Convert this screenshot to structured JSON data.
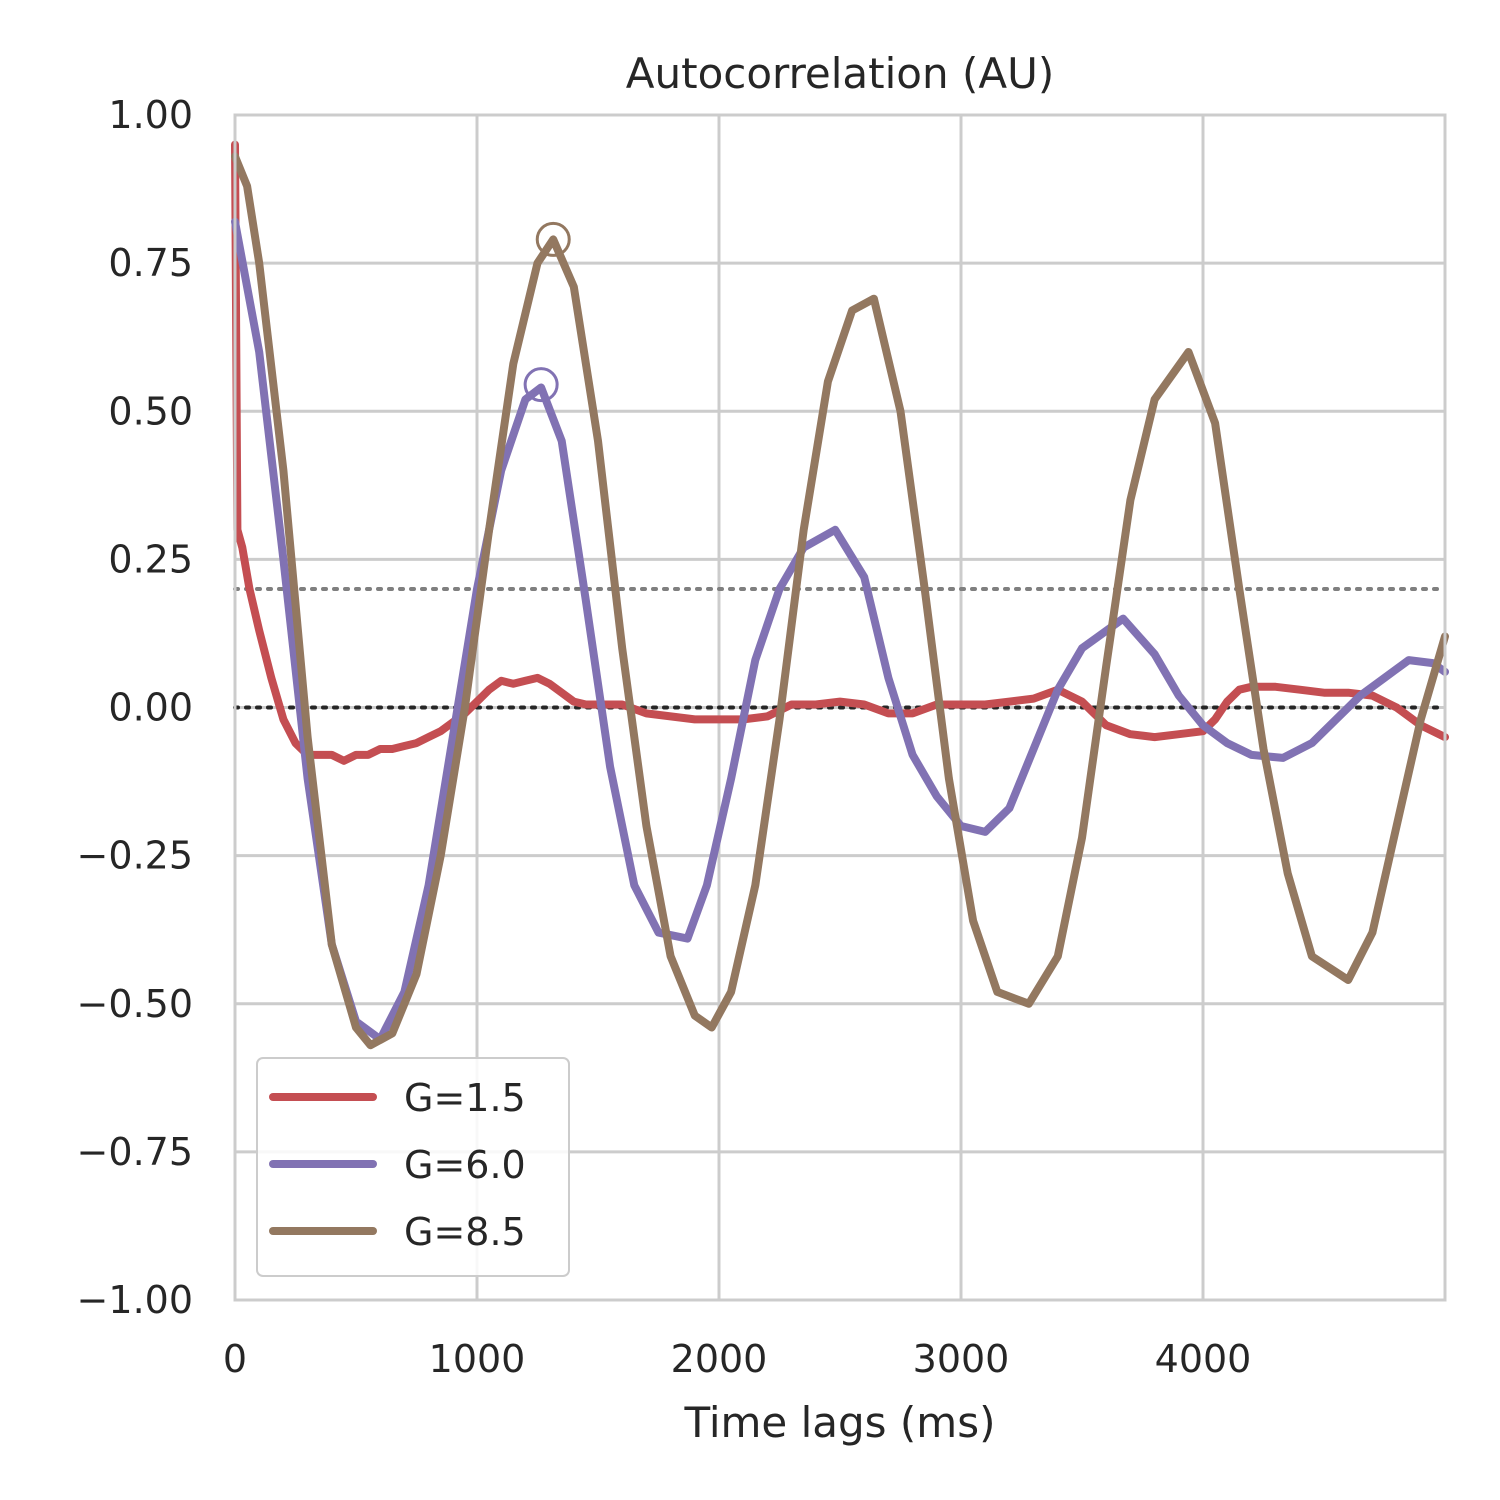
{
  "chart_data": {
    "type": "line",
    "title": "Autocorrelation (AU)",
    "xlabel": "Time lags (ms)",
    "ylabel": "",
    "xlim": [
      0,
      5000
    ],
    "ylim": [
      -1.0,
      1.0
    ],
    "x_ticks": [
      0,
      1000,
      2000,
      3000,
      4000
    ],
    "x_tick_labels": [
      "0",
      "1000",
      "2000",
      "3000",
      "4000"
    ],
    "y_ticks": [
      1.0,
      0.75,
      0.5,
      0.25,
      0.0,
      -0.25,
      -0.5,
      -0.75,
      -1.0
    ],
    "y_tick_labels": [
      "1.00",
      "0.75",
      "0.50",
      "0.25",
      "0.00",
      "−0.25",
      "−0.50",
      "−0.75",
      "−1.00"
    ],
    "grid": true,
    "legend_position": "bottom-left",
    "reference_lines": [
      {
        "y": 0.2,
        "style": "dotted",
        "color": "#7f7f7f"
      },
      {
        "y": 0.0,
        "style": "dotted",
        "color": "#262626"
      }
    ],
    "series": [
      {
        "name": "G=1.5",
        "color": "#c44e52",
        "x": [
          0,
          10,
          30,
          60,
          100,
          150,
          200,
          250,
          300,
          350,
          400,
          450,
          500,
          550,
          600,
          650,
          700,
          750,
          800,
          850,
          900,
          950,
          1000,
          1050,
          1100,
          1150,
          1200,
          1250,
          1300,
          1350,
          1400,
          1450,
          1500,
          1550,
          1600,
          1700,
          1800,
          1900,
          2000,
          2100,
          2200,
          2300,
          2400,
          2500,
          2600,
          2700,
          2800,
          2900,
          3000,
          3100,
          3200,
          3300,
          3400,
          3500,
          3600,
          3700,
          3800,
          3900,
          4000,
          4050,
          4100,
          4150,
          4200,
          4300,
          4400,
          4500,
          4600,
          4700,
          4800,
          4900,
          5000
        ],
        "y": [
          0.95,
          0.3,
          0.27,
          0.2,
          0.13,
          0.05,
          -0.02,
          -0.06,
          -0.08,
          -0.08,
          -0.08,
          -0.09,
          -0.08,
          -0.08,
          -0.07,
          -0.07,
          -0.065,
          -0.06,
          -0.05,
          -0.04,
          -0.025,
          -0.01,
          0.01,
          0.03,
          0.045,
          0.04,
          0.045,
          0.05,
          0.04,
          0.025,
          0.01,
          0.005,
          0.005,
          0.005,
          0.005,
          -0.01,
          -0.015,
          -0.02,
          -0.02,
          -0.02,
          -0.015,
          0.005,
          0.005,
          0.01,
          0.005,
          -0.01,
          -0.01,
          0.005,
          0.005,
          0.005,
          0.01,
          0.015,
          0.03,
          0.01,
          -0.03,
          -0.045,
          -0.05,
          -0.045,
          -0.04,
          -0.02,
          0.01,
          0.03,
          0.035,
          0.035,
          0.03,
          0.025,
          0.025,
          0.02,
          0.0,
          -0.03,
          -0.05
        ]
      },
      {
        "name": "G=6.0",
        "color": "#8172b3",
        "x": [
          0,
          100,
          200,
          300,
          400,
          500,
          600,
          700,
          800,
          900,
          1000,
          1100,
          1200,
          1265,
          1350,
          1450,
          1550,
          1650,
          1750,
          1870,
          1950,
          2050,
          2150,
          2250,
          2350,
          2480,
          2600,
          2700,
          2800,
          2900,
          3000,
          3100,
          3200,
          3300,
          3400,
          3500,
          3670,
          3800,
          3900,
          4000,
          4100,
          4200,
          4330,
          4450,
          4550,
          4650,
          4750,
          4850,
          4950,
          5000
        ],
        "y": [
          0.82,
          0.6,
          0.25,
          -0.12,
          -0.4,
          -0.53,
          -0.56,
          -0.48,
          -0.3,
          -0.05,
          0.2,
          0.4,
          0.52,
          0.54,
          0.45,
          0.18,
          -0.1,
          -0.3,
          -0.38,
          -0.39,
          -0.3,
          -0.12,
          0.08,
          0.2,
          0.27,
          0.3,
          0.22,
          0.05,
          -0.08,
          -0.15,
          -0.2,
          -0.21,
          -0.17,
          -0.07,
          0.03,
          0.1,
          0.15,
          0.09,
          0.02,
          -0.03,
          -0.06,
          -0.08,
          -0.085,
          -0.06,
          -0.02,
          0.02,
          0.05,
          0.08,
          0.075,
          0.06
        ]
      },
      {
        "name": "G=8.5",
        "color": "#937860",
        "x": [
          0,
          50,
          100,
          200,
          300,
          400,
          500,
          560,
          650,
          750,
          850,
          950,
          1050,
          1150,
          1250,
          1315,
          1400,
          1500,
          1600,
          1700,
          1800,
          1900,
          1970,
          2050,
          2150,
          2250,
          2350,
          2450,
          2550,
          2640,
          2750,
          2850,
          2950,
          3050,
          3150,
          3280,
          3400,
          3500,
          3600,
          3700,
          3800,
          3940,
          4050,
          4150,
          4250,
          4350,
          4450,
          4600,
          4700,
          4800,
          4900,
          5000
        ],
        "y": [
          0.93,
          0.88,
          0.75,
          0.4,
          -0.05,
          -0.4,
          -0.54,
          -0.57,
          -0.55,
          -0.45,
          -0.25,
          0.0,
          0.3,
          0.58,
          0.75,
          0.79,
          0.71,
          0.45,
          0.1,
          -0.2,
          -0.42,
          -0.52,
          -0.54,
          -0.48,
          -0.3,
          -0.02,
          0.3,
          0.55,
          0.67,
          0.69,
          0.5,
          0.2,
          -0.12,
          -0.36,
          -0.48,
          -0.5,
          -0.42,
          -0.22,
          0.07,
          0.35,
          0.52,
          0.6,
          0.48,
          0.2,
          -0.07,
          -0.28,
          -0.42,
          -0.46,
          -0.38,
          -0.2,
          -0.02,
          0.12
        ]
      }
    ],
    "markers": [
      {
        "series": "G=6.0",
        "x": 1265,
        "y": 0.545,
        "shape": "open-circle"
      },
      {
        "series": "G=8.5",
        "x": 1315,
        "y": 0.79,
        "shape": "open-circle"
      }
    ]
  }
}
